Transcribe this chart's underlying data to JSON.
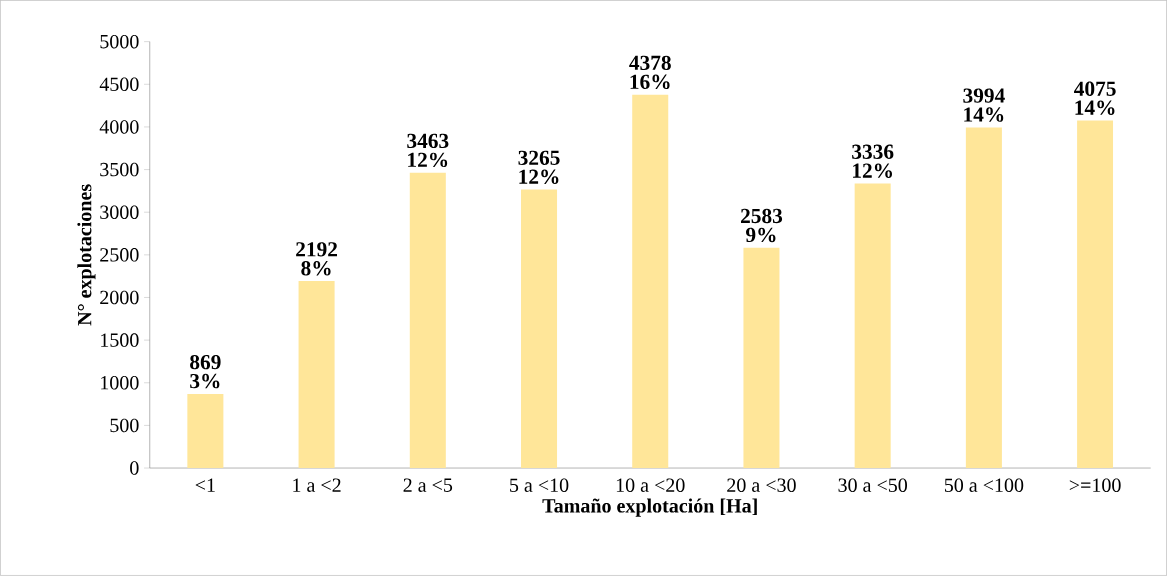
{
  "chart_data": {
    "type": "bar",
    "xlabel": "Tamaño explotación [Ha]",
    "ylabel": "N° explotaciones",
    "categories": [
      "<1",
      "1 a <2",
      "2 a <5",
      "5 a <10",
      "10 a <20",
      "20 a <30",
      "30 a <50",
      "50 a <100",
      ">=100"
    ],
    "values": [
      869,
      2192,
      3463,
      3265,
      4378,
      2583,
      3336,
      3994,
      4075
    ],
    "value_labels": [
      "869",
      "2192",
      "3463",
      "3265",
      "4378",
      "2583",
      "3336",
      "3994",
      "4075"
    ],
    "color": "#ffe699",
    "ylim": [
      0,
      5000
    ],
    "yticks": [
      0,
      500,
      1000,
      1500,
      2000,
      2500,
      3000,
      3500,
      4000,
      4500,
      5000
    ],
    "annotations": [
      "3%",
      "8%",
      "12%",
      "12%",
      "16%",
      "9%",
      "12%",
      "14%",
      "14%"
    ],
    "grid": false
  }
}
